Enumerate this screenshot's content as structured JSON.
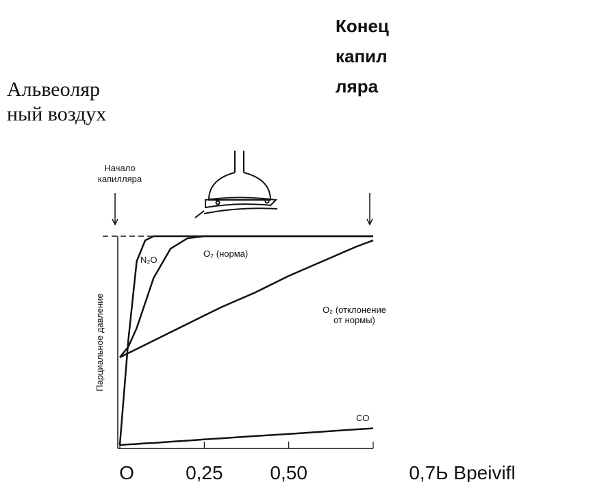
{
  "header": {
    "left_label": [
      "Альвеоляр",
      "ный воздух"
    ],
    "right_label": [
      "Конец",
      "капил",
      "ляра"
    ]
  },
  "chart_data": {
    "type": "line",
    "start_label": [
      "Начало",
      "капилляра"
    ],
    "y_label": "Парциальное давление",
    "x": [
      0,
      0.025,
      0.05,
      0.075,
      0.1,
      0.15,
      0.2,
      0.25,
      0.3,
      0.4,
      0.5,
      0.6,
      0.7,
      0.75
    ],
    "series": [
      {
        "name": "N₂O",
        "color": "#111111",
        "values": [
          0,
          0.5,
          0.88,
          0.98,
          1,
          1,
          1,
          1,
          1,
          1,
          1,
          1,
          1,
          1
        ]
      },
      {
        "name": "O₂ (норма)",
        "color": "#111111",
        "values": [
          0.42,
          0.47,
          0.56,
          0.68,
          0.8,
          0.94,
          0.99,
          1,
          1,
          1,
          1,
          1,
          1,
          1
        ]
      },
      {
        "name": "O₂ (отклонение от нормы)",
        "color": "#111111",
        "values": [
          0.42,
          0.44,
          0.46,
          0.48,
          0.5,
          0.54,
          0.58,
          0.62,
          0.66,
          0.73,
          0.81,
          0.88,
          0.95,
          0.98
        ]
      },
      {
        "name": "CO",
        "color": "#111111",
        "values": [
          0,
          0.003,
          0.005,
          0.008,
          0.01,
          0.016,
          0.021,
          0.027,
          0.032,
          0.043,
          0.053,
          0.064,
          0.075,
          0.08
        ]
      }
    ],
    "xlim": [
      0,
      0.75
    ],
    "xticks": [
      {
        "value": 0,
        "label": "O"
      },
      {
        "value": 0.25,
        "label": "0,25"
      },
      {
        "value": 0.5,
        "label": "0,50"
      },
      {
        "value": 0.75,
        "label": "0,7Ь Bpeivifl"
      }
    ],
    "ylim": [
      0,
      1
    ]
  }
}
